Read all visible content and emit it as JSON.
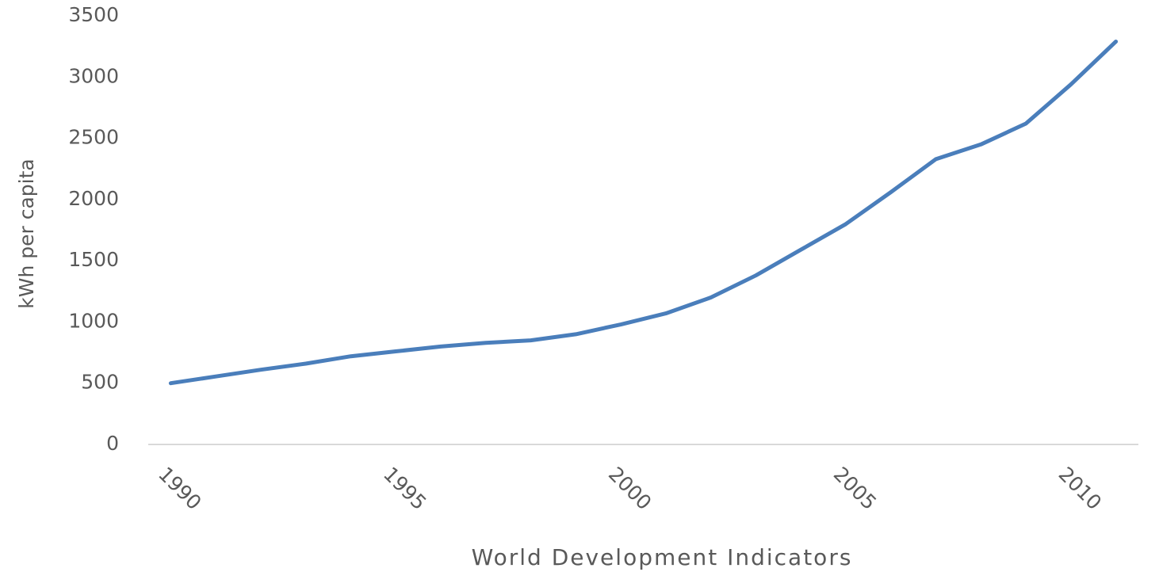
{
  "chart_data": {
    "type": "line",
    "x_label": "World Development Indicators",
    "y_label": "kWh per capita",
    "x": [
      1990,
      1991,
      1992,
      1993,
      1994,
      1995,
      1996,
      1997,
      1998,
      1999,
      2000,
      2001,
      2002,
      2003,
      2004,
      2005,
      2006,
      2007,
      2008,
      2009,
      2010,
      2011
    ],
    "series": [
      {
        "name": "kWh per capita",
        "color": "#4a7ebb",
        "values": [
          500,
          555,
          610,
          660,
          720,
          760,
          800,
          830,
          850,
          900,
          980,
          1070,
          1200,
          1380,
          1590,
          1800,
          2060,
          2330,
          2450,
          2620,
          2940,
          3290
        ]
      }
    ],
    "xlim": [
      1989.5,
      2011.5
    ],
    "xticks": [
      1990,
      1995,
      2000,
      2005,
      2010
    ],
    "ylim": [
      0,
      3500
    ],
    "yticks": [
      0,
      500,
      1000,
      1500,
      2000,
      2500,
      3000,
      3500
    ],
    "grid": false
  }
}
